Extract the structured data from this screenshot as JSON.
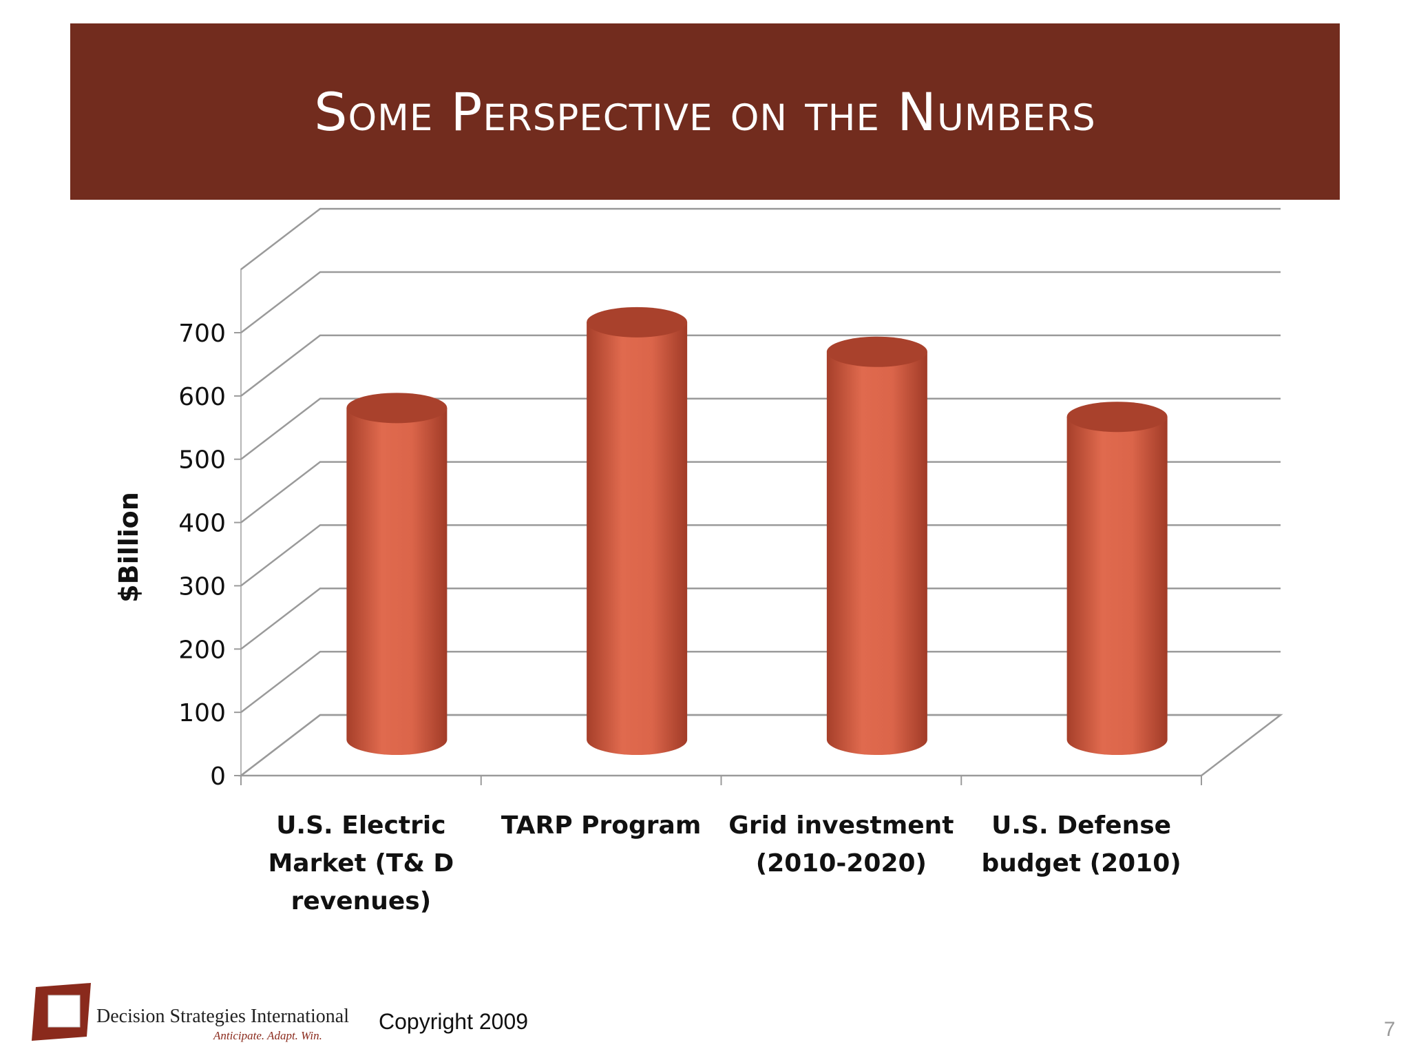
{
  "slide": {
    "title": "Some Perspective on the Numbers",
    "company": "Decision Strategies International",
    "tagline": "Anticipate.  Adapt.  Win.",
    "copyright": "Copyright 2009",
    "page_number": "7"
  },
  "colors": {
    "banner": "#722c1e",
    "bar": "#d9654a",
    "bar_top": "#a9412c",
    "grid": "#9a9a9a"
  },
  "chart_data": {
    "type": "bar",
    "style": "3d-cylinder",
    "ylabel": "$Billion",
    "xlabel": "",
    "ylim": [
      0,
      700
    ],
    "yticks": [
      0,
      100,
      200,
      300,
      400,
      500,
      600,
      700
    ],
    "grid": true,
    "categories": [
      [
        "U.S. Electric",
        "Market (T& D",
        "revenues)"
      ],
      [
        "TARP Program"
      ],
      [
        "Grid investment",
        "(2010-2020)"
      ],
      [
        "U.S. Defense",
        "budget (2010)"
      ]
    ],
    "values": [
      575,
      720,
      670,
      560
    ]
  }
}
